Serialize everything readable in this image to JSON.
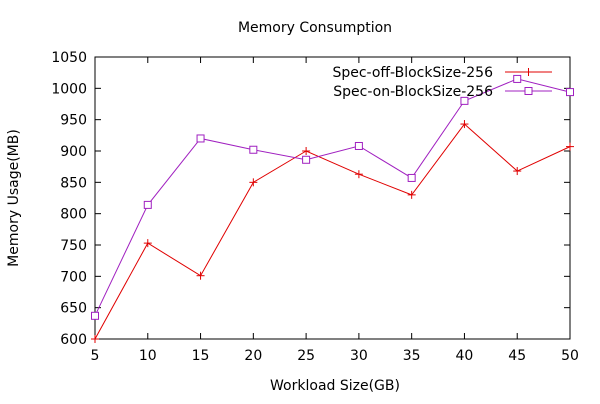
{
  "chart_data": {
    "type": "line",
    "title": "Memory Consumption",
    "xlabel": "Workload Size(GB)",
    "ylabel": "Memory Usage(MB)",
    "x": [
      5,
      10,
      15,
      20,
      25,
      30,
      35,
      40,
      45,
      50
    ],
    "xlim": [
      5,
      50
    ],
    "ylim": [
      600,
      1050
    ],
    "xticks": [
      "5",
      "10",
      "15",
      "20",
      "25",
      "30",
      "35",
      "40",
      "45",
      "50"
    ],
    "yticks": [
      "600",
      "650",
      "700",
      "750",
      "800",
      "850",
      "900",
      "950",
      "1000",
      "1050"
    ],
    "grid": false,
    "legend_position": "top-right",
    "series": [
      {
        "name": "Spec-off-BlockSize-256",
        "color": "#e00000",
        "marker": "plus",
        "values": [
          600,
          753,
          701,
          850,
          900,
          863,
          830,
          943,
          868,
          907
        ]
      },
      {
        "name": "Spec-on-BlockSize-256",
        "color": "#a020c0",
        "marker": "square",
        "values": [
          637,
          814,
          920,
          902,
          886,
          908,
          857,
          980,
          1015,
          994
        ]
      }
    ]
  }
}
